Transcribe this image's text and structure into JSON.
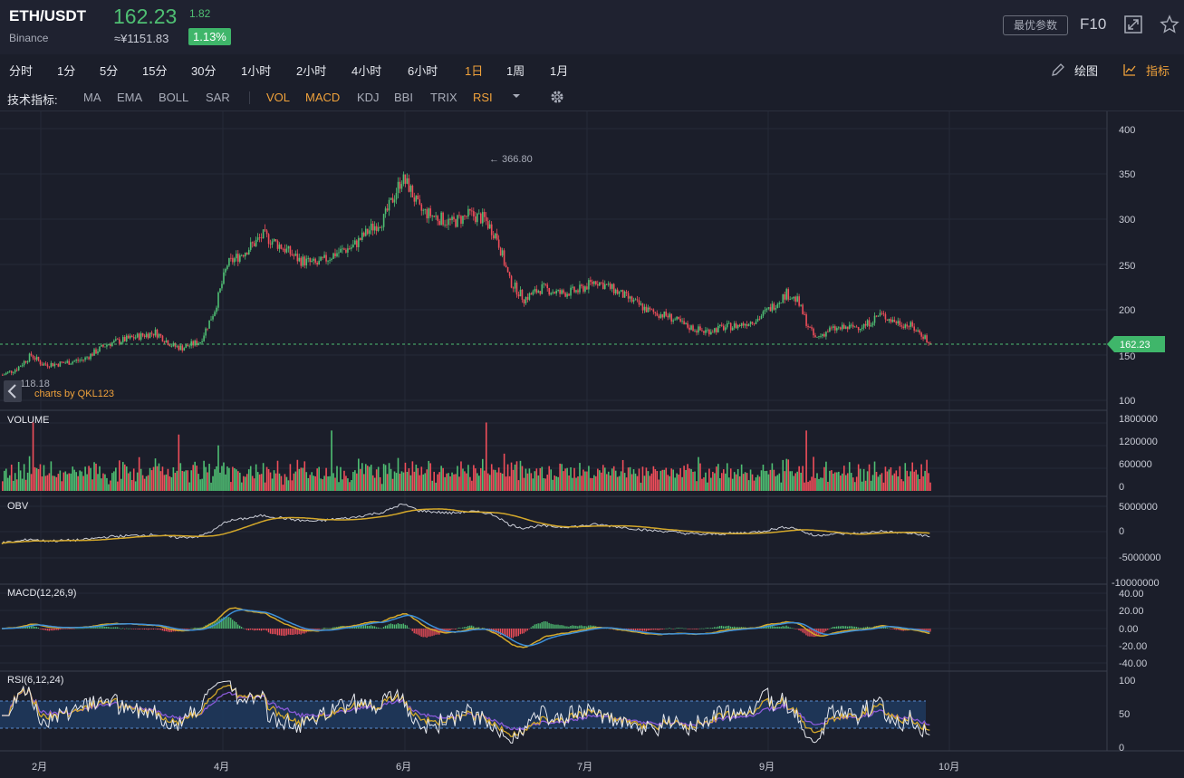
{
  "header": {
    "symbol": "ETH/USDT",
    "exchange": "Binance",
    "price": "162.23",
    "change": "1.82",
    "cny": "≈¥1151.83",
    "percent": "1.13%",
    "optimize_button": "最优参数",
    "f10": "F10",
    "colors": {
      "up": "#4fbf73",
      "down": "#ef4e5a"
    }
  },
  "timeframes": [
    "分时",
    "1分",
    "5分",
    "15分",
    "30分",
    "1小时",
    "2小时",
    "4小时",
    "6小时",
    "1日",
    "1周",
    "1月"
  ],
  "active_timeframe": "1日",
  "tools": {
    "draw": "绘图",
    "indicator": "指标"
  },
  "indicator_bar": {
    "label": "技术指标:",
    "overlays": [
      "MA",
      "EMA",
      "BOLL",
      "SAR"
    ],
    "subcharts": [
      "VOL",
      "MACD",
      "KDJ",
      "BBI",
      "TRIX",
      "RSI"
    ],
    "active": [
      "VOL",
      "MACD",
      "RSI"
    ]
  },
  "chart": {
    "price_axis": [
      "400",
      "350",
      "300",
      "250",
      "200",
      "150",
      "100"
    ],
    "high_label": "← 366.80",
    "low_label": "118.18",
    "watermark": "charts by QKL123",
    "last_price_tag": "162.23",
    "x_axis": [
      "2月",
      "4月",
      "6月",
      "7月",
      "9月",
      "10月"
    ]
  },
  "panels": {
    "volume": {
      "label": "VOLUME",
      "axis": [
        "1800000",
        "1200000",
        "600000",
        "0"
      ]
    },
    "obv": {
      "label": "OBV",
      "axis": [
        "5000000",
        "0",
        "-5000000",
        "-10000000"
      ]
    },
    "macd": {
      "label": "MACD(12,26,9)",
      "axis": [
        "40.00",
        "20.00",
        "0.00",
        "-20.00",
        "-40.00"
      ]
    },
    "rsi": {
      "label": "RSI(6,12,24)",
      "axis": [
        "100",
        "50",
        "0"
      ]
    }
  },
  "chart_data": {
    "type": "candlestick",
    "period": "1D",
    "high": 366.8,
    "low": 118.18,
    "last": 162.23,
    "ylim": [
      100,
      400
    ],
    "close_path": [
      [
        0,
        128
      ],
      [
        8,
        135
      ],
      [
        16,
        150
      ],
      [
        22,
        140
      ],
      [
        30,
        140
      ],
      [
        45,
        145
      ],
      [
        58,
        162
      ],
      [
        70,
        168
      ],
      [
        85,
        175
      ],
      [
        95,
        160
      ],
      [
        100,
        158
      ],
      [
        110,
        165
      ],
      [
        118,
        200
      ],
      [
        125,
        250
      ],
      [
        135,
        265
      ],
      [
        145,
        282
      ],
      [
        155,
        270
      ],
      [
        165,
        255
      ],
      [
        175,
        250
      ],
      [
        185,
        262
      ],
      [
        195,
        270
      ],
      [
        205,
        290
      ],
      [
        212,
        300
      ],
      [
        222,
        345
      ],
      [
        226,
        336
      ],
      [
        232,
        310
      ],
      [
        240,
        303
      ],
      [
        250,
        296
      ],
      [
        260,
        305
      ],
      [
        268,
        300
      ],
      [
        275,
        280
      ],
      [
        282,
        232
      ],
      [
        290,
        212
      ],
      [
        300,
        224
      ],
      [
        310,
        218
      ],
      [
        320,
        221
      ],
      [
        330,
        232
      ],
      [
        340,
        222
      ],
      [
        350,
        210
      ],
      [
        360,
        198
      ],
      [
        370,
        193
      ],
      [
        380,
        182
      ],
      [
        390,
        176
      ],
      [
        400,
        180
      ],
      [
        410,
        183
      ],
      [
        420,
        190
      ],
      [
        430,
        207
      ],
      [
        436,
        218
      ],
      [
        442,
        210
      ],
      [
        448,
        182
      ],
      [
        452,
        168
      ],
      [
        460,
        178
      ],
      [
        470,
        180
      ],
      [
        480,
        183
      ],
      [
        488,
        195
      ],
      [
        495,
        188
      ],
      [
        505,
        182
      ],
      [
        513,
        170
      ],
      [
        515,
        162.23
      ]
    ],
    "volume_spikes": [
      1500000,
      1700000,
      1400000,
      1500000
    ]
  }
}
